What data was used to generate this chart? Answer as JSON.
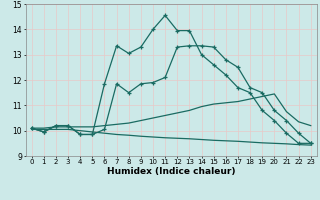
{
  "title": "",
  "xlabel": "Humidex (Indice chaleur)",
  "bg_color": "#cce9e8",
  "line_color": "#1a6b62",
  "grid_color": "#b0d8d5",
  "xlim": [
    -0.5,
    23.5
  ],
  "ylim": [
    9,
    15
  ],
  "xticks": [
    0,
    1,
    2,
    3,
    4,
    5,
    6,
    7,
    8,
    9,
    10,
    11,
    12,
    13,
    14,
    15,
    16,
    17,
    18,
    19,
    20,
    21,
    22,
    23
  ],
  "yticks": [
    9,
    10,
    11,
    12,
    13,
    14,
    15
  ],
  "line1_x": [
    0,
    1,
    2,
    3,
    4,
    5,
    6,
    7,
    8,
    9,
    10,
    11,
    12,
    13,
    14,
    15,
    16,
    17,
    18,
    19,
    20,
    21,
    22,
    23
  ],
  "line1_y": [
    10.1,
    9.95,
    10.2,
    10.2,
    9.85,
    9.85,
    11.85,
    13.35,
    13.05,
    13.3,
    14.0,
    14.55,
    13.95,
    13.95,
    13.0,
    12.6,
    12.2,
    11.7,
    11.5,
    10.8,
    10.4,
    9.9,
    9.5,
    9.5
  ],
  "line2_x": [
    0,
    1,
    2,
    3,
    4,
    5,
    6,
    7,
    8,
    9,
    10,
    11,
    12,
    13,
    14,
    15,
    16,
    17,
    18,
    19,
    20,
    21,
    22,
    23
  ],
  "line2_y": [
    10.1,
    9.95,
    10.2,
    10.2,
    9.85,
    9.85,
    10.05,
    11.85,
    11.5,
    11.85,
    11.9,
    12.1,
    13.3,
    13.35,
    13.35,
    13.3,
    12.8,
    12.5,
    11.7,
    11.5,
    10.8,
    10.4,
    9.9,
    9.5
  ],
  "line3_x": [
    0,
    1,
    2,
    3,
    4,
    5,
    6,
    7,
    8,
    9,
    10,
    11,
    12,
    13,
    14,
    15,
    16,
    17,
    18,
    19,
    20,
    21,
    22,
    23
  ],
  "line3_y": [
    10.1,
    10.1,
    10.15,
    10.15,
    10.15,
    10.15,
    10.2,
    10.25,
    10.3,
    10.4,
    10.5,
    10.6,
    10.7,
    10.8,
    10.95,
    11.05,
    11.1,
    11.15,
    11.25,
    11.35,
    11.45,
    10.75,
    10.35,
    10.2
  ],
  "line4_x": [
    0,
    1,
    2,
    3,
    4,
    5,
    6,
    7,
    8,
    9,
    10,
    11,
    12,
    13,
    14,
    15,
    16,
    17,
    18,
    19,
    20,
    21,
    22,
    23
  ],
  "line4_y": [
    10.05,
    10.05,
    10.05,
    10.05,
    10.0,
    9.95,
    9.9,
    9.85,
    9.82,
    9.78,
    9.75,
    9.72,
    9.7,
    9.68,
    9.65,
    9.62,
    9.6,
    9.58,
    9.55,
    9.52,
    9.5,
    9.48,
    9.45,
    9.43
  ]
}
